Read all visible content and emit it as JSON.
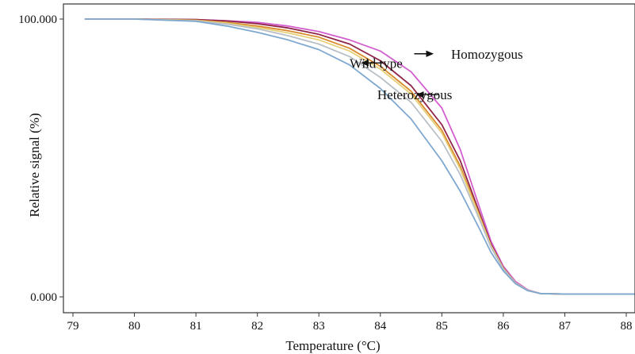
{
  "chart_data": {
    "type": "line",
    "title": "",
    "xlabel": "Temperature (°C)",
    "ylabel": "Relative signal (%)",
    "xlim": [
      79,
      88.3
    ],
    "ylim": [
      0,
      100
    ],
    "x_ticks": [
      79,
      80,
      81,
      82,
      83,
      84,
      85,
      86,
      87,
      88
    ],
    "y_tick_labels": [
      "100.000",
      "0.000"
    ],
    "grid": false,
    "legend": "none",
    "series": [
      {
        "color": "#d35fcf",
        "points": [
          [
            79.2,
            100
          ],
          [
            80,
            100
          ],
          [
            81,
            99.8
          ],
          [
            81.5,
            99.4
          ],
          [
            82,
            98.8
          ],
          [
            82.5,
            97.5
          ],
          [
            83,
            95.5
          ],
          [
            83.5,
            92.5
          ],
          [
            84,
            88.5
          ],
          [
            84.5,
            81
          ],
          [
            85,
            68
          ],
          [
            85.3,
            53
          ],
          [
            85.6,
            33
          ],
          [
            85.8,
            20
          ],
          [
            86,
            11
          ],
          [
            86.2,
            5.5
          ],
          [
            86.4,
            2.5
          ],
          [
            86.6,
            1.2
          ],
          [
            87,
            1
          ],
          [
            88.3,
            1
          ]
        ]
      },
      {
        "color": "#8e2448",
        "points": [
          [
            79.2,
            100
          ],
          [
            80,
            100
          ],
          [
            81,
            99.8
          ],
          [
            81.5,
            99.3
          ],
          [
            82,
            98.3
          ],
          [
            82.5,
            96.8
          ],
          [
            83,
            94.5
          ],
          [
            83.5,
            91
          ],
          [
            84,
            85
          ],
          [
            84.5,
            76
          ],
          [
            85,
            62
          ],
          [
            85.3,
            49
          ],
          [
            85.6,
            31
          ],
          [
            85.8,
            19
          ],
          [
            86,
            10.5
          ],
          [
            86.2,
            5
          ],
          [
            86.4,
            2.3
          ],
          [
            86.6,
            1.2
          ],
          [
            87,
            1
          ],
          [
            88.3,
            1
          ]
        ]
      },
      {
        "color": "#d88a2c",
        "points": [
          [
            79.2,
            100
          ],
          [
            80,
            100
          ],
          [
            81,
            99.6
          ],
          [
            81.5,
            98.8
          ],
          [
            82,
            97.5
          ],
          [
            82.5,
            95.8
          ],
          [
            83,
            93.5
          ],
          [
            83.5,
            89.5
          ],
          [
            84,
            83
          ],
          [
            84.5,
            74
          ],
          [
            85,
            60
          ],
          [
            85.3,
            47
          ],
          [
            85.6,
            30
          ],
          [
            85.8,
            18.5
          ],
          [
            86,
            10.3
          ],
          [
            86.2,
            5
          ],
          [
            86.4,
            2.3
          ],
          [
            86.6,
            1.2
          ],
          [
            87,
            1
          ],
          [
            88.3,
            1
          ]
        ]
      },
      {
        "color": "#e6cf7a",
        "points": [
          [
            79.2,
            100
          ],
          [
            80,
            100
          ],
          [
            81,
            99.5
          ],
          [
            81.5,
            98.5
          ],
          [
            82,
            97
          ],
          [
            82.5,
            95
          ],
          [
            83,
            92.5
          ],
          [
            83.5,
            88.5
          ],
          [
            84,
            82
          ],
          [
            84.5,
            73
          ],
          [
            85,
            59
          ],
          [
            85.3,
            46
          ],
          [
            85.6,
            29.5
          ],
          [
            85.8,
            18.3
          ],
          [
            86,
            10.2
          ],
          [
            86.2,
            5
          ],
          [
            86.4,
            2.3
          ],
          [
            86.6,
            1.2
          ],
          [
            87,
            1
          ],
          [
            88.3,
            1
          ]
        ]
      },
      {
        "color": "#b9bfc6",
        "points": [
          [
            79.2,
            100
          ],
          [
            80,
            100
          ],
          [
            81,
            99.3
          ],
          [
            81.5,
            98.2
          ],
          [
            82,
            96.5
          ],
          [
            82.5,
            94
          ],
          [
            83,
            91
          ],
          [
            83.5,
            86.5
          ],
          [
            84,
            79
          ],
          [
            84.5,
            70
          ],
          [
            85,
            56
          ],
          [
            85.3,
            44
          ],
          [
            85.6,
            28.5
          ],
          [
            85.8,
            17.8
          ],
          [
            86,
            10
          ],
          [
            86.2,
            4.9
          ],
          [
            86.4,
            2.3
          ],
          [
            86.6,
            1.2
          ],
          [
            87,
            1
          ],
          [
            88.3,
            1
          ]
        ]
      },
      {
        "color": "#7fa8d0",
        "points": [
          [
            79.2,
            100
          ],
          [
            80,
            100
          ],
          [
            81,
            99.2
          ],
          [
            81.5,
            97.5
          ],
          [
            82,
            95.2
          ],
          [
            82.5,
            92.5
          ],
          [
            83,
            89
          ],
          [
            83.5,
            83.5
          ],
          [
            84,
            75
          ],
          [
            84.5,
            64
          ],
          [
            85,
            49
          ],
          [
            85.3,
            38
          ],
          [
            85.6,
            25
          ],
          [
            85.8,
            16
          ],
          [
            86,
            9.3
          ],
          [
            86.2,
            4.7
          ],
          [
            86.4,
            2.2
          ],
          [
            86.6,
            1.2
          ],
          [
            87,
            1
          ],
          [
            88.3,
            1
          ]
        ]
      }
    ],
    "annotations": [
      {
        "text": "Homozygous",
        "x": 85.15,
        "y": 87.5,
        "arrow": "right",
        "arrow_from": [
          84.55,
          87.5
        ],
        "arrow_to": [
          84.85,
          87.5
        ]
      },
      {
        "text": "Wild type",
        "x": 83.5,
        "y": 84.2,
        "arrow": "left",
        "arrow_from": [
          84.05,
          84.2
        ],
        "arrow_to": [
          83.7,
          84.2
        ]
      },
      {
        "text": "Heterozygous",
        "x": 83.95,
        "y": 72.8,
        "arrow": "left",
        "arrow_from": [
          84.95,
          72.8
        ],
        "arrow_to": [
          84.6,
          72.8
        ]
      }
    ]
  }
}
